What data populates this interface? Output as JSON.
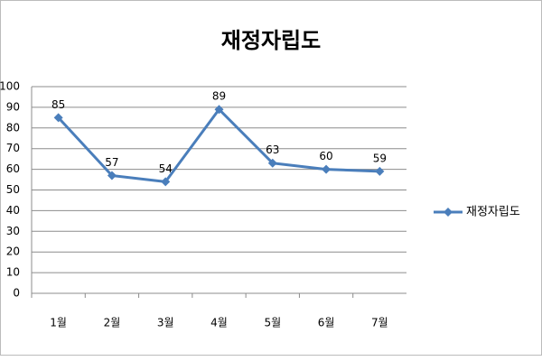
{
  "chart_data": {
    "type": "line",
    "title": "재정자립도",
    "categories": [
      "1월",
      "2월",
      "3월",
      "4월",
      "5월",
      "6월",
      "7월"
    ],
    "series": [
      {
        "name": "재정자립도",
        "color": "#4a7ebb",
        "values": [
          85,
          57,
          54,
          89,
          63,
          60,
          59
        ]
      }
    ],
    "ylim": [
      0,
      100
    ],
    "yticks": [
      0,
      10,
      20,
      30,
      40,
      50,
      60,
      70,
      80,
      90,
      100
    ],
    "grid": true,
    "legend": "right"
  }
}
